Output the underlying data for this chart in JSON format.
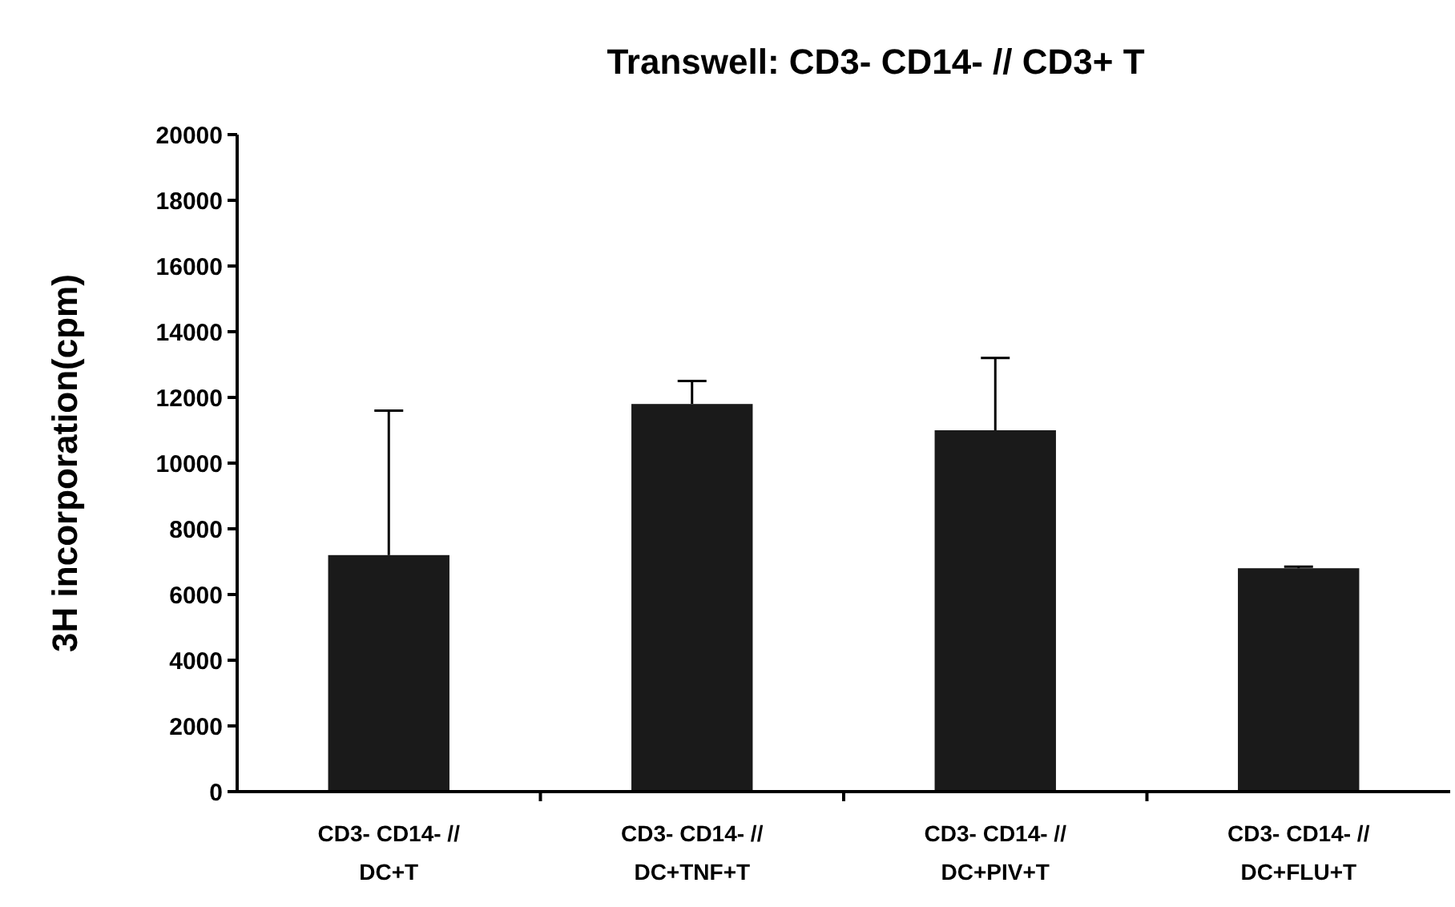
{
  "chart_data": {
    "type": "bar",
    "title": "Transwell: CD3- CD14- // CD3+ T",
    "ylabel": "3H incorporation(cpm)",
    "categories": [
      "CD3- CD14- //\nDC+T",
      "CD3- CD14- //\nDC+TNF+T",
      "CD3- CD14- //\nDC+PIV+T",
      "CD3- CD14- //\nDC+FLU+T"
    ],
    "values": [
      7200,
      11800,
      11000,
      6800
    ],
    "errors": [
      [
        7200,
        11600
      ],
      [
        11800,
        12500
      ],
      [
        11000,
        13200
      ],
      [
        6800,
        6850
      ]
    ],
    "color": "#1a1a1a",
    "ylim": [
      0,
      20000
    ],
    "yticks": [
      0,
      2000,
      4000,
      6000,
      8000,
      10000,
      12000,
      14000,
      16000,
      18000,
      20000
    ],
    "grid": false
  }
}
